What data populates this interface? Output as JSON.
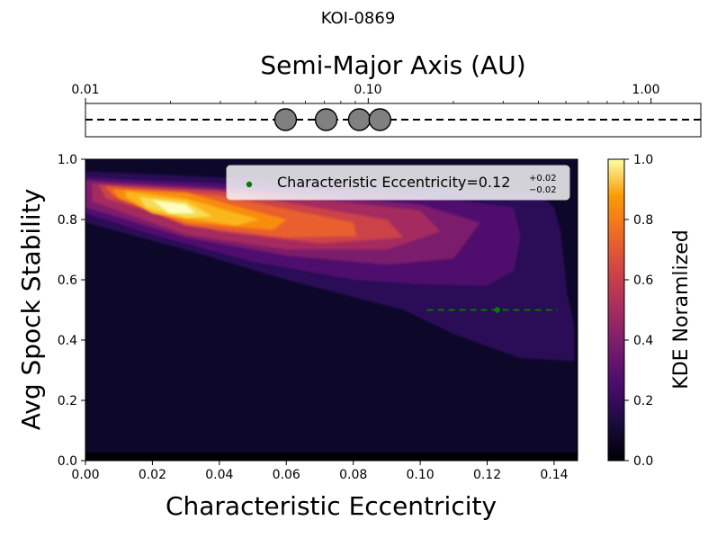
{
  "chart_data": [
    {
      "type": "strip",
      "suptitle": "KOI-0869",
      "title": "Semi-Major Axis (AU)",
      "xscale": "log",
      "xlim": [
        0.01,
        1.5
      ],
      "xticks": [
        {
          "value": 0.01,
          "label": "0.01"
        },
        {
          "value": 0.1,
          "label": "0.10"
        },
        {
          "value": 1.0,
          "label": "1.00"
        }
      ],
      "planets_au": [
        0.051,
        0.071,
        0.093,
        0.11
      ],
      "planet_color": "#808080"
    },
    {
      "type": "heatmap",
      "xlabel": "Characteristic Eccentricity",
      "ylabel": "Avg Spock Stability",
      "xlim": [
        0.0,
        0.147
      ],
      "ylim": [
        0.0,
        1.0
      ],
      "xticks": [
        "0.00",
        "0.02",
        "0.04",
        "0.06",
        "0.08",
        "0.10",
        "0.12",
        "0.14"
      ],
      "yticks": [
        "0.0",
        "0.2",
        "0.4",
        "0.6",
        "0.8",
        "1.0"
      ],
      "colorbar": {
        "label": "KDE Noramlized",
        "ticks": [
          "0.0",
          "0.2",
          "0.4",
          "0.6",
          "0.8",
          "1.0"
        ],
        "colormap": "inferno"
      },
      "legend": {
        "text": "Characteristic Eccentricity=0.12",
        "sup": "+0.02",
        "sub": "−0.02",
        "color": "#008000",
        "position": "upper-right"
      },
      "marker": {
        "x": 0.123,
        "y": 0.5,
        "xerr_low": 0.021,
        "xerr_high": 0.018
      },
      "contour_levels": [
        {
          "level": 0.1,
          "color": "#2a0b57",
          "polygon": [
            [
              0.0,
              0.96
            ],
            [
              0.04,
              0.94
            ],
            [
              0.1,
              0.91
            ],
            [
              0.135,
              0.89
            ],
            [
              0.14,
              0.84
            ],
            [
              0.142,
              0.76
            ],
            [
              0.144,
              0.55
            ],
            [
              0.146,
              0.45
            ],
            [
              0.146,
              0.33
            ],
            [
              0.13,
              0.34
            ],
            [
              0.11,
              0.42
            ],
            [
              0.095,
              0.5
            ],
            [
              0.06,
              0.6
            ],
            [
              0.03,
              0.7
            ],
            [
              0.0,
              0.79
            ]
          ]
        },
        {
          "level": 0.2,
          "color": "#50106e",
          "polygon": [
            [
              0.0,
              0.94
            ],
            [
              0.04,
              0.92
            ],
            [
              0.1,
              0.88
            ],
            [
              0.128,
              0.84
            ],
            [
              0.13,
              0.74
            ],
            [
              0.128,
              0.63
            ],
            [
              0.12,
              0.58
            ],
            [
              0.1,
              0.585
            ],
            [
              0.08,
              0.6
            ],
            [
              0.05,
              0.66
            ],
            [
              0.02,
              0.75
            ],
            [
              0.0,
              0.82
            ]
          ]
        },
        {
          "level": 0.3,
          "color": "#7b1b6c",
          "polygon": [
            [
              0.0,
              0.93
            ],
            [
              0.05,
              0.9
            ],
            [
              0.1,
              0.85
            ],
            [
              0.118,
              0.79
            ],
            [
              0.11,
              0.67
            ],
            [
              0.09,
              0.65
            ],
            [
              0.06,
              0.68
            ],
            [
              0.03,
              0.74
            ],
            [
              0.0,
              0.84
            ]
          ]
        },
        {
          "level": 0.4,
          "color": "#a52c5f",
          "polygon": [
            [
              0.002,
              0.92
            ],
            [
              0.05,
              0.89
            ],
            [
              0.1,
              0.83
            ],
            [
              0.106,
              0.76
            ],
            [
              0.09,
              0.7
            ],
            [
              0.06,
              0.7
            ],
            [
              0.03,
              0.75
            ],
            [
              0.002,
              0.86
            ]
          ]
        },
        {
          "level": 0.5,
          "color": "#cc4248",
          "polygon": [
            [
              0.004,
              0.915
            ],
            [
              0.04,
              0.895
            ],
            [
              0.09,
              0.8
            ],
            [
              0.095,
              0.74
            ],
            [
              0.07,
              0.72
            ],
            [
              0.04,
              0.76
            ],
            [
              0.006,
              0.87
            ]
          ]
        },
        {
          "level": 0.6,
          "color": "#e9612f",
          "polygon": [
            [
              0.006,
              0.91
            ],
            [
              0.04,
              0.88
            ],
            [
              0.08,
              0.79
            ],
            [
              0.081,
              0.745
            ],
            [
              0.06,
              0.74
            ],
            [
              0.03,
              0.78
            ],
            [
              0.008,
              0.88
            ]
          ]
        },
        {
          "level": 0.7,
          "color": "#f98c0a",
          "polygon": [
            [
              0.008,
              0.9
            ],
            [
              0.03,
              0.89
            ],
            [
              0.06,
              0.8
            ],
            [
              0.056,
              0.765
            ],
            [
              0.03,
              0.79
            ],
            [
              0.01,
              0.87
            ]
          ]
        },
        {
          "level": 0.8,
          "color": "#fbb61a",
          "polygon": [
            [
              0.012,
              0.895
            ],
            [
              0.03,
              0.87
            ],
            [
              0.052,
              0.8
            ],
            [
              0.045,
              0.78
            ],
            [
              0.02,
              0.82
            ],
            [
              0.012,
              0.875
            ]
          ]
        },
        {
          "level": 0.9,
          "color": "#f6dd53",
          "polygon": [
            [
              0.016,
              0.875
            ],
            [
              0.03,
              0.86
            ],
            [
              0.038,
              0.81
            ],
            [
              0.03,
              0.805
            ],
            [
              0.018,
              0.84
            ]
          ]
        },
        {
          "level": 1.0,
          "color": "#fcfdbf",
          "polygon": [
            [
              0.02,
              0.865
            ],
            [
              0.03,
              0.85
            ],
            [
              0.033,
              0.82
            ],
            [
              0.025,
              0.82
            ]
          ]
        }
      ]
    }
  ]
}
